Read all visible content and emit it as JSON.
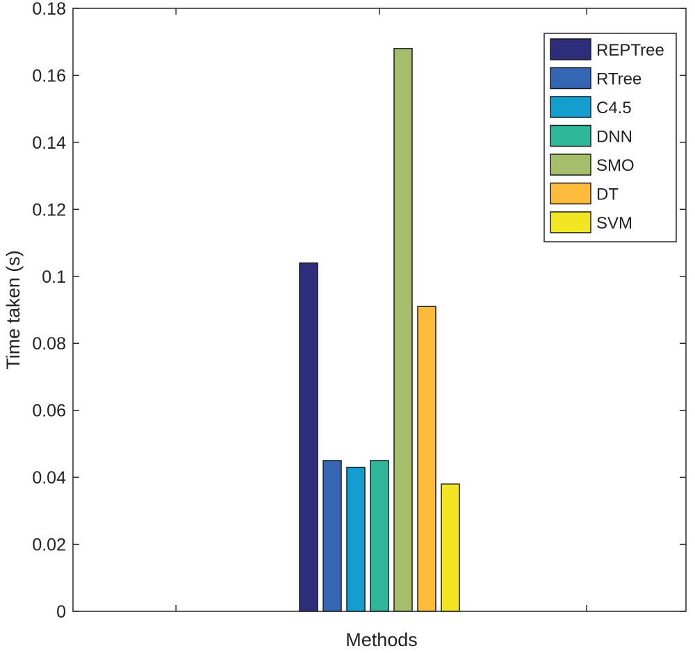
{
  "chart_data": {
    "type": "bar",
    "title": "",
    "xlabel": "Methods",
    "ylabel": "Time taken (s)",
    "ylim": [
      0,
      0.18
    ],
    "yticks": [
      "0",
      "0.02",
      "0.04",
      "0.06",
      "0.08",
      "0.1",
      "0.12",
      "0.14",
      "0.16",
      "0.18"
    ],
    "grid": false,
    "legend_position": "top-right",
    "series": [
      {
        "name": "REPTree",
        "values": [
          0.104
        ],
        "color": "#2e2d7b"
      },
      {
        "name": "RTree",
        "values": [
          0.045
        ],
        "color": "#3566b4"
      },
      {
        "name": "C4.5",
        "values": [
          0.043
        ],
        "color": "#139ecf"
      },
      {
        "name": "DNN",
        "values": [
          0.045
        ],
        "color": "#2fb79a"
      },
      {
        "name": "SMO",
        "values": [
          0.168
        ],
        "color": "#a4be6b"
      },
      {
        "name": "DT",
        "values": [
          0.091
        ],
        "color": "#fdbb3c"
      },
      {
        "name": "SVM",
        "values": [
          0.038
        ],
        "color": "#f2e524"
      }
    ]
  }
}
